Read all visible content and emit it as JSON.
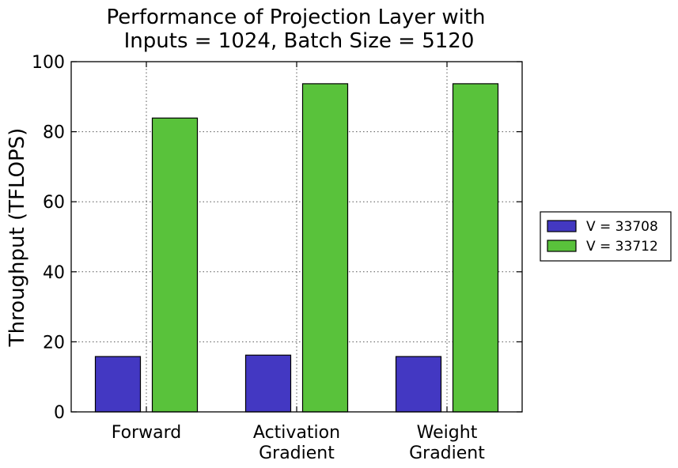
{
  "chart_data": {
    "type": "bar",
    "title_lines": [
      "Performance of Projection Layer with",
      "Inputs = 1024, Batch Size = 5120"
    ],
    "xlabel": "",
    "ylabel": "Throughput (TFLOPS)",
    "categories": [
      [
        "Forward"
      ],
      [
        "Activation",
        "Gradient"
      ],
      [
        "Weight",
        "Gradient"
      ]
    ],
    "series": [
      {
        "name": "V = 33708",
        "color": "#4338c2",
        "values": [
          15.8,
          16.2,
          15.8
        ]
      },
      {
        "name": "V = 33712",
        "color": "#59c23b",
        "values": [
          83.9,
          93.7,
          93.7
        ]
      }
    ],
    "ylim": [
      0,
      100
    ],
    "yticks": [
      0,
      20,
      40,
      60,
      80,
      100
    ],
    "grid": true,
    "legend_position": "outside-right"
  }
}
